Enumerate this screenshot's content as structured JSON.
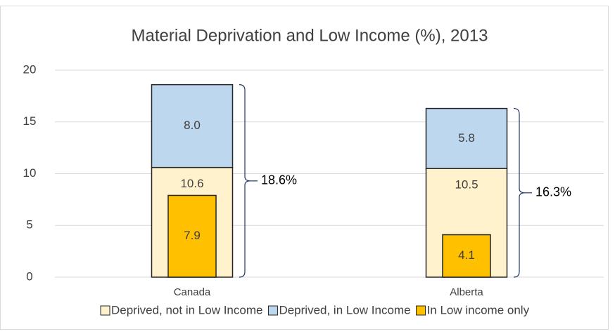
{
  "chart_data": {
    "type": "bar",
    "title": "Material Deprivation and Low Income (%), 2013",
    "categories": [
      "Canada",
      "Alberta"
    ],
    "series": [
      {
        "name": "Deprived, not in Low Income",
        "color": "#fff2cc",
        "values": [
          10.6,
          10.5
        ]
      },
      {
        "name": "Deprived, in Low Income",
        "color": "#bdd7ee",
        "values": [
          8.0,
          5.8
        ],
        "value_labels": [
          "8.0",
          "5.8"
        ]
      },
      {
        "name": "In Low income only",
        "color": "#ffc000",
        "values": [
          7.9,
          4.1
        ],
        "overlay": true
      }
    ],
    "annotations": [
      {
        "value": 18.6,
        "label": "18.6%"
      },
      {
        "value": 16.3,
        "label": "16.3%"
      }
    ],
    "ylim": [
      0,
      20
    ],
    "yticks": [
      0,
      5,
      10,
      15,
      20
    ],
    "grid": true,
    "legend": "bottom"
  }
}
